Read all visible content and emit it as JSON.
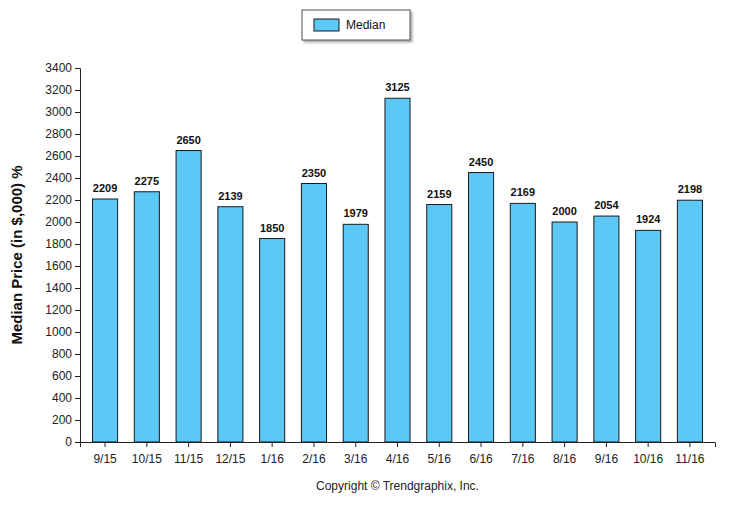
{
  "chart_data": {
    "type": "bar",
    "ylabel": "Median Price (in $,000) %",
    "annotations": [
      "Copyright © Trendgraphix, Inc."
    ],
    "categories": [
      "9/15",
      "10/15",
      "11/15",
      "12/15",
      "1/16",
      "2/16",
      "3/16",
      "4/16",
      "5/16",
      "6/16",
      "7/16",
      "8/16",
      "9/16",
      "10/16",
      "11/16"
    ],
    "series": [
      {
        "name": "Median",
        "color": "#5bc8f5",
        "values": [
          2209,
          2275,
          2650,
          2139,
          1850,
          2350,
          1979,
          3125,
          2159,
          2450,
          2169,
          2000,
          2054,
          1924,
          2198
        ]
      }
    ],
    "ylim": [
      0,
      3400
    ],
    "yticks": [
      0,
      200,
      400,
      600,
      800,
      1000,
      1200,
      1400,
      1600,
      1800,
      2000,
      2200,
      2400,
      2600,
      2800,
      3000,
      3200,
      3400
    ],
    "grid": false,
    "legend": "top",
    "data_labels": true
  }
}
